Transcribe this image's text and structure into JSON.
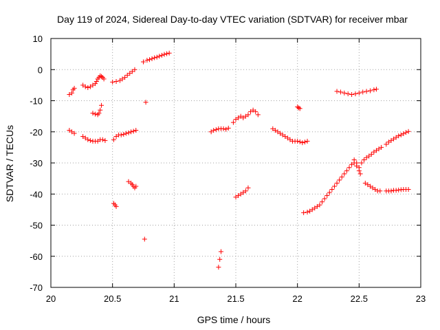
{
  "chart_data": {
    "type": "scatter",
    "title": "Day 119 of 2024, Sidereal Day-to-day VTEC variation (SDTVAR) for receiver mbar",
    "xlabel": "GPS time / hours",
    "ylabel": "SDTVAR / TECUs",
    "xlim": [
      20,
      23
    ],
    "ylim": [
      -70,
      10
    ],
    "xticks": [
      20,
      20.5,
      21,
      21.5,
      22,
      22.5,
      23
    ],
    "xtick_labels": [
      "20",
      "20.5",
      "21",
      "21.5",
      "22",
      "22.5",
      "23"
    ],
    "yticks": [
      -70,
      -60,
      -50,
      -40,
      -30,
      -20,
      -10,
      0,
      10
    ],
    "ytick_labels": [
      "-70",
      "-60",
      "-50",
      "-40",
      "-30",
      "-20",
      "-10",
      "0",
      "10"
    ],
    "grid": true,
    "marker": "+",
    "marker_color": "#ff0000",
    "series": [
      {
        "name": "s1",
        "points": [
          [
            20.15,
            -8
          ],
          [
            20.17,
            -7.5
          ],
          [
            20.18,
            -6.5
          ],
          [
            20.19,
            -6
          ]
        ]
      },
      {
        "name": "s2",
        "points": [
          [
            20.26,
            -5
          ],
          [
            20.28,
            -5.5
          ],
          [
            20.3,
            -5.8
          ],
          [
            20.32,
            -5.5
          ],
          [
            20.34,
            -5
          ],
          [
            20.36,
            -4.5
          ],
          [
            20.37,
            -3.8
          ],
          [
            20.38,
            -3
          ],
          [
            20.39,
            -2.5
          ],
          [
            20.4,
            -2
          ],
          [
            20.41,
            -2.2
          ],
          [
            20.42,
            -2.5
          ],
          [
            20.43,
            -3
          ]
        ]
      },
      {
        "name": "s3",
        "points": [
          [
            20.5,
            -4
          ],
          [
            20.53,
            -3.8
          ],
          [
            20.56,
            -3.5
          ],
          [
            20.58,
            -3
          ],
          [
            20.6,
            -2.5
          ],
          [
            20.62,
            -1.8
          ],
          [
            20.64,
            -1.2
          ],
          [
            20.66,
            -0.6
          ],
          [
            20.68,
            0
          ]
        ]
      },
      {
        "name": "s4",
        "points": [
          [
            20.75,
            2.5
          ],
          [
            20.78,
            3
          ],
          [
            20.8,
            3.2
          ],
          [
            20.82,
            3.5
          ],
          [
            20.84,
            3.8
          ],
          [
            20.86,
            4
          ],
          [
            20.88,
            4.3
          ],
          [
            20.9,
            4.6
          ],
          [
            20.92,
            4.9
          ],
          [
            20.94,
            5.1
          ],
          [
            20.96,
            5.3
          ]
        ]
      },
      {
        "name": "s5",
        "points": [
          [
            20.34,
            -14
          ],
          [
            20.36,
            -14.3
          ],
          [
            20.38,
            -14.5
          ],
          [
            20.39,
            -14
          ],
          [
            20.4,
            -13
          ],
          [
            20.41,
            -11.5
          ]
        ]
      },
      {
        "name": "s6",
        "points": [
          [
            20.15,
            -19.5
          ],
          [
            20.17,
            -20
          ],
          [
            20.19,
            -20.5
          ]
        ]
      },
      {
        "name": "s7",
        "points": [
          [
            20.26,
            -21.5
          ],
          [
            20.28,
            -22
          ],
          [
            20.3,
            -22.5
          ],
          [
            20.32,
            -22.8
          ],
          [
            20.34,
            -23
          ],
          [
            20.36,
            -23
          ],
          [
            20.38,
            -23
          ],
          [
            20.4,
            -22.5
          ],
          [
            20.42,
            -22.5
          ],
          [
            20.44,
            -22.8
          ]
        ]
      },
      {
        "name": "s8",
        "points": [
          [
            20.51,
            -22.5
          ],
          [
            20.53,
            -21.5
          ],
          [
            20.55,
            -21
          ],
          [
            20.57,
            -21
          ],
          [
            20.59,
            -20.8
          ],
          [
            20.61,
            -20.5
          ],
          [
            20.63,
            -20.3
          ],
          [
            20.65,
            -20
          ],
          [
            20.67,
            -19.8
          ],
          [
            20.69,
            -19.5
          ]
        ]
      },
      {
        "name": "s9",
        "points": [
          [
            20.77,
            -10.5
          ]
        ]
      },
      {
        "name": "s10",
        "points": [
          [
            20.51,
            -43
          ],
          [
            20.52,
            -43.5
          ],
          [
            20.53,
            -44
          ]
        ]
      },
      {
        "name": "s11",
        "points": [
          [
            20.63,
            -36
          ],
          [
            20.65,
            -36.5
          ],
          [
            20.66,
            -37
          ],
          [
            20.67,
            -37.5
          ],
          [
            20.68,
            -38
          ],
          [
            20.69,
            -37.5
          ]
        ]
      },
      {
        "name": "s12",
        "points": [
          [
            20.76,
            -54.5
          ]
        ]
      },
      {
        "name": "s13",
        "points": [
          [
            21.3,
            -20
          ],
          [
            21.32,
            -19.5
          ],
          [
            21.34,
            -19.3
          ],
          [
            21.36,
            -19
          ],
          [
            21.38,
            -19
          ],
          [
            21.4,
            -19
          ],
          [
            21.42,
            -19.2
          ],
          [
            21.44,
            -18.8
          ]
        ]
      },
      {
        "name": "s14",
        "points": [
          [
            21.36,
            -63.5
          ],
          [
            21.37,
            -61
          ],
          [
            21.38,
            -58.5
          ]
        ]
      },
      {
        "name": "s15",
        "points": [
          [
            21.48,
            -17
          ],
          [
            21.5,
            -16
          ],
          [
            21.52,
            -15.5
          ],
          [
            21.54,
            -15
          ],
          [
            21.56,
            -15.5
          ],
          [
            21.58,
            -15
          ],
          [
            21.6,
            -14.5
          ],
          [
            21.62,
            -13.5
          ],
          [
            21.64,
            -13
          ],
          [
            21.66,
            -13.5
          ],
          [
            21.68,
            -14.5
          ]
        ]
      },
      {
        "name": "s16",
        "points": [
          [
            21.5,
            -41
          ],
          [
            21.52,
            -40.5
          ],
          [
            21.54,
            -40
          ],
          [
            21.56,
            -39.5
          ],
          [
            21.58,
            -39
          ],
          [
            21.6,
            -38
          ]
        ]
      },
      {
        "name": "s17",
        "points": [
          [
            21.8,
            -19
          ],
          [
            21.82,
            -19.5
          ],
          [
            21.84,
            -20
          ],
          [
            21.86,
            -20.5
          ],
          [
            21.88,
            -21
          ],
          [
            21.9,
            -21.5
          ],
          [
            21.92,
            -22
          ],
          [
            21.94,
            -22.5
          ],
          [
            21.96,
            -23
          ],
          [
            21.98,
            -23
          ],
          [
            22.0,
            -23
          ],
          [
            22.02,
            -23.2
          ],
          [
            22.04,
            -23.5
          ],
          [
            22.06,
            -23.3
          ],
          [
            22.08,
            -23
          ]
        ]
      },
      {
        "name": "s18",
        "points": [
          [
            22,
            -12
          ],
          [
            22.01,
            -12.3
          ],
          [
            22.02,
            -12.5
          ]
        ]
      },
      {
        "name": "s19",
        "points": [
          [
            22.05,
            -46
          ],
          [
            22.08,
            -45.8
          ],
          [
            22.1,
            -45.5
          ],
          [
            22.12,
            -45
          ],
          [
            22.14,
            -44.5
          ],
          [
            22.16,
            -44
          ],
          [
            22.18,
            -43.5
          ],
          [
            22.2,
            -42.5
          ],
          [
            22.22,
            -41.5
          ],
          [
            22.24,
            -40.5
          ],
          [
            22.26,
            -39.5
          ],
          [
            22.28,
            -38.5
          ],
          [
            22.3,
            -37.5
          ],
          [
            22.32,
            -36.5
          ],
          [
            22.34,
            -35.5
          ],
          [
            22.36,
            -34.5
          ],
          [
            22.38,
            -33.5
          ],
          [
            22.4,
            -32.5
          ],
          [
            22.42,
            -31.5
          ],
          [
            22.44,
            -30.5
          ],
          [
            22.46,
            -30
          ],
          [
            22.48,
            -31
          ],
          [
            22.5,
            -32.5
          ],
          [
            22.51,
            -33.5
          ]
        ]
      },
      {
        "name": "s20",
        "points": [
          [
            22.32,
            -7
          ],
          [
            22.35,
            -7.2
          ],
          [
            22.38,
            -7.5
          ],
          [
            22.41,
            -7.8
          ],
          [
            22.44,
            -8
          ],
          [
            22.47,
            -7.8
          ],
          [
            22.5,
            -7.5
          ],
          [
            22.53,
            -7.2
          ],
          [
            22.56,
            -7
          ],
          [
            22.59,
            -6.8
          ],
          [
            22.62,
            -6.5
          ],
          [
            22.64,
            -6.3
          ]
        ]
      },
      {
        "name": "s21",
        "points": [
          [
            22.46,
            -29
          ],
          [
            22.48,
            -30
          ],
          [
            22.5,
            -31.5
          ],
          [
            22.52,
            -30
          ],
          [
            22.54,
            -29
          ],
          [
            22.56,
            -28.3
          ],
          [
            22.58,
            -27.8
          ],
          [
            22.6,
            -27.2
          ],
          [
            22.62,
            -26.5
          ],
          [
            22.64,
            -26
          ],
          [
            22.66,
            -25.5
          ],
          [
            22.68,
            -25
          ]
        ]
      },
      {
        "name": "s22",
        "points": [
          [
            22.72,
            -24
          ],
          [
            22.74,
            -23.3
          ],
          [
            22.76,
            -22.8
          ],
          [
            22.78,
            -22.3
          ],
          [
            22.8,
            -21.8
          ],
          [
            22.82,
            -21.3
          ],
          [
            22.84,
            -21
          ],
          [
            22.86,
            -20.6
          ],
          [
            22.88,
            -20.2
          ],
          [
            22.9,
            -19.9
          ]
        ]
      },
      {
        "name": "s23",
        "points": [
          [
            22.55,
            -36.5
          ],
          [
            22.57,
            -37
          ],
          [
            22.59,
            -37.5
          ],
          [
            22.61,
            -38
          ],
          [
            22.63,
            -38.5
          ],
          [
            22.65,
            -39
          ],
          [
            22.67,
            -39
          ]
        ]
      },
      {
        "name": "s24",
        "points": [
          [
            22.72,
            -39
          ],
          [
            22.74,
            -39
          ],
          [
            22.76,
            -39
          ],
          [
            22.78,
            -38.8
          ],
          [
            22.8,
            -38.8
          ],
          [
            22.82,
            -38.7
          ],
          [
            22.84,
            -38.6
          ],
          [
            22.86,
            -38.5
          ],
          [
            22.88,
            -38.5
          ],
          [
            22.9,
            -38.5
          ]
        ]
      }
    ]
  }
}
